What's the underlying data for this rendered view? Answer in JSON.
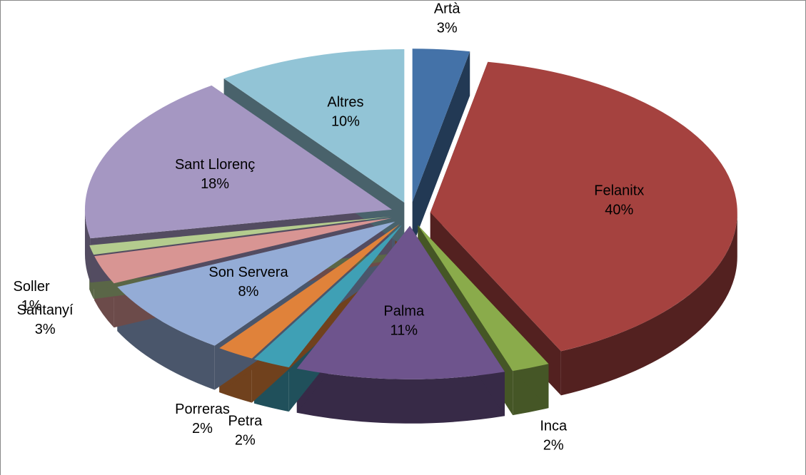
{
  "chart_data": {
    "type": "pie",
    "categories": [
      "Artà",
      "Felanitx",
      "Inca",
      "Palma",
      "Petra",
      "Porreras",
      "Son Servera",
      "Santanyí",
      "Soller",
      "Sant Llorenç",
      "Altres"
    ],
    "values": [
      3,
      40,
      2,
      11,
      2,
      2,
      8,
      3,
      1,
      18,
      10
    ],
    "value_labels": [
      "3%",
      "40%",
      "2%",
      "11%",
      "2%",
      "2%",
      "8%",
      "3%",
      "1%",
      "18%",
      "10%"
    ],
    "colors": [
      "#4472a8",
      "#a5423f",
      "#8aab4b",
      "#6e548d",
      "#3fa0b5",
      "#e0823a",
      "#94acd6",
      "#d89593",
      "#b4cc8e",
      "#a597c2",
      "#92c4d6"
    ]
  }
}
